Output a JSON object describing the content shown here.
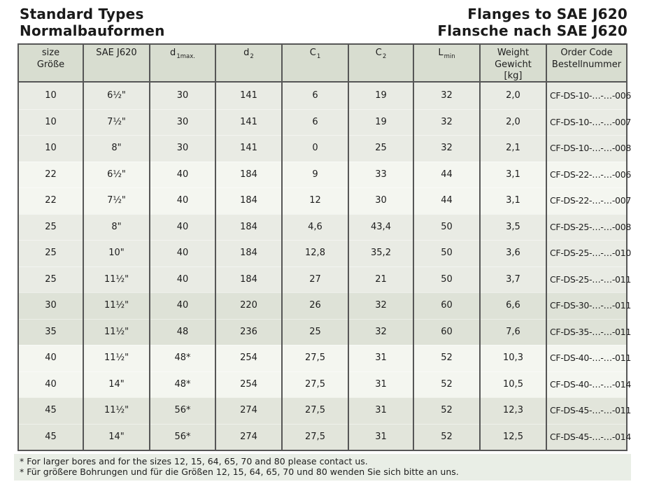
{
  "header": {
    "title_left_line1": "Standard Types",
    "title_left_line2": "Normalbauformen",
    "title_right_line1": "Flanges to SAE J620",
    "title_right_line2": "Flansche nach SAE J620"
  },
  "colors": {
    "table_border": "#565656",
    "header_bg": "#d8ddd0",
    "band_a": "#e9ebe4",
    "band_b": "#f4f6f0",
    "band_c": "#dee2d7",
    "band_d": "#e2e5db",
    "notes_bg": "#e9eee6",
    "text": "#1d1d1d"
  },
  "table": {
    "columns": [
      {
        "name": "size",
        "lines": [
          "size",
          "Größe"
        ]
      },
      {
        "name": "sae-j620",
        "lines": [
          "SAE J620"
        ]
      },
      {
        "name": "d1max",
        "symbol": "d",
        "sub": "1max."
      },
      {
        "name": "d2",
        "symbol": "d",
        "sub": "2"
      },
      {
        "name": "c1",
        "symbol": "C",
        "sub": "1"
      },
      {
        "name": "c2",
        "symbol": "C",
        "sub": "2"
      },
      {
        "name": "lmin",
        "symbol": "L",
        "sub": "min"
      },
      {
        "name": "weight",
        "lines": [
          "Weight",
          "Gewicht",
          "[kg]"
        ]
      },
      {
        "name": "order-code",
        "lines": [
          "Order Code",
          "Bestellnummer"
        ]
      }
    ],
    "rows": [
      {
        "band": "a",
        "cells": [
          "10",
          "6½\"",
          "30",
          "141",
          "6",
          "19",
          "32",
          "2,0",
          "CF-DS-10-…-…-006"
        ]
      },
      {
        "band": "a",
        "cells": [
          "10",
          "7½\"",
          "30",
          "141",
          "6",
          "19",
          "32",
          "2,0",
          "CF-DS-10-…-…-007"
        ]
      },
      {
        "band": "a",
        "cells": [
          "10",
          "8\"",
          "30",
          "141",
          "0",
          "25",
          "32",
          "2,1",
          "CF-DS-10-…-…-008"
        ]
      },
      {
        "band": "b",
        "cells": [
          "22",
          "6½\"",
          "40",
          "184",
          "9",
          "33",
          "44",
          "3,1",
          "CF-DS-22-…-…-006"
        ]
      },
      {
        "band": "b",
        "cells": [
          "22",
          "7½\"",
          "40",
          "184",
          "12",
          "30",
          "44",
          "3,1",
          "CF-DS-22-…-…-007"
        ]
      },
      {
        "band": "a",
        "cells": [
          "25",
          "8\"",
          "40",
          "184",
          "4,6",
          "43,4",
          "50",
          "3,5",
          "CF-DS-25-…-…-008"
        ]
      },
      {
        "band": "a",
        "cells": [
          "25",
          "10\"",
          "40",
          "184",
          "12,8",
          "35,2",
          "50",
          "3,6",
          "CF-DS-25-…-…-010"
        ]
      },
      {
        "band": "a",
        "cells": [
          "25",
          "11½\"",
          "40",
          "184",
          "27",
          "21",
          "50",
          "3,7",
          "CF-DS-25-…-…-011"
        ]
      },
      {
        "band": "c",
        "cells": [
          "30",
          "11½\"",
          "40",
          "220",
          "26",
          "32",
          "60",
          "6,6",
          "CF-DS-30-…-…-011"
        ]
      },
      {
        "band": "c",
        "cells": [
          "35",
          "11½\"",
          "48",
          "236",
          "25",
          "32",
          "60",
          "7,6",
          "CF-DS-35-…-…-011"
        ]
      },
      {
        "band": "b",
        "cells": [
          "40",
          "11½\"",
          "48*",
          "254",
          "27,5",
          "31",
          "52",
          "10,3",
          "CF-DS-40-…-…-011"
        ]
      },
      {
        "band": "b",
        "cells": [
          "40",
          "14\"",
          "48*",
          "254",
          "27,5",
          "31",
          "52",
          "10,5",
          "CF-DS-40-…-…-014"
        ]
      },
      {
        "band": "d",
        "cells": [
          "45",
          "11½\"",
          "56*",
          "274",
          "27,5",
          "31",
          "52",
          "12,3",
          "CF-DS-45-…-…-011"
        ]
      },
      {
        "band": "d",
        "cells": [
          "45",
          "14\"",
          "56*",
          "274",
          "27,5",
          "31",
          "52",
          "12,5",
          "CF-DS-45-…-…-014"
        ]
      }
    ]
  },
  "footnotes": [
    "* For larger bores and for the sizes 12, 15, 64, 65, 70 and 80 please contact us.",
    "* Für größere Bohrungen und für die Größen 12, 15, 64, 65, 70 und 80 wenden Sie sich bitte an uns."
  ]
}
